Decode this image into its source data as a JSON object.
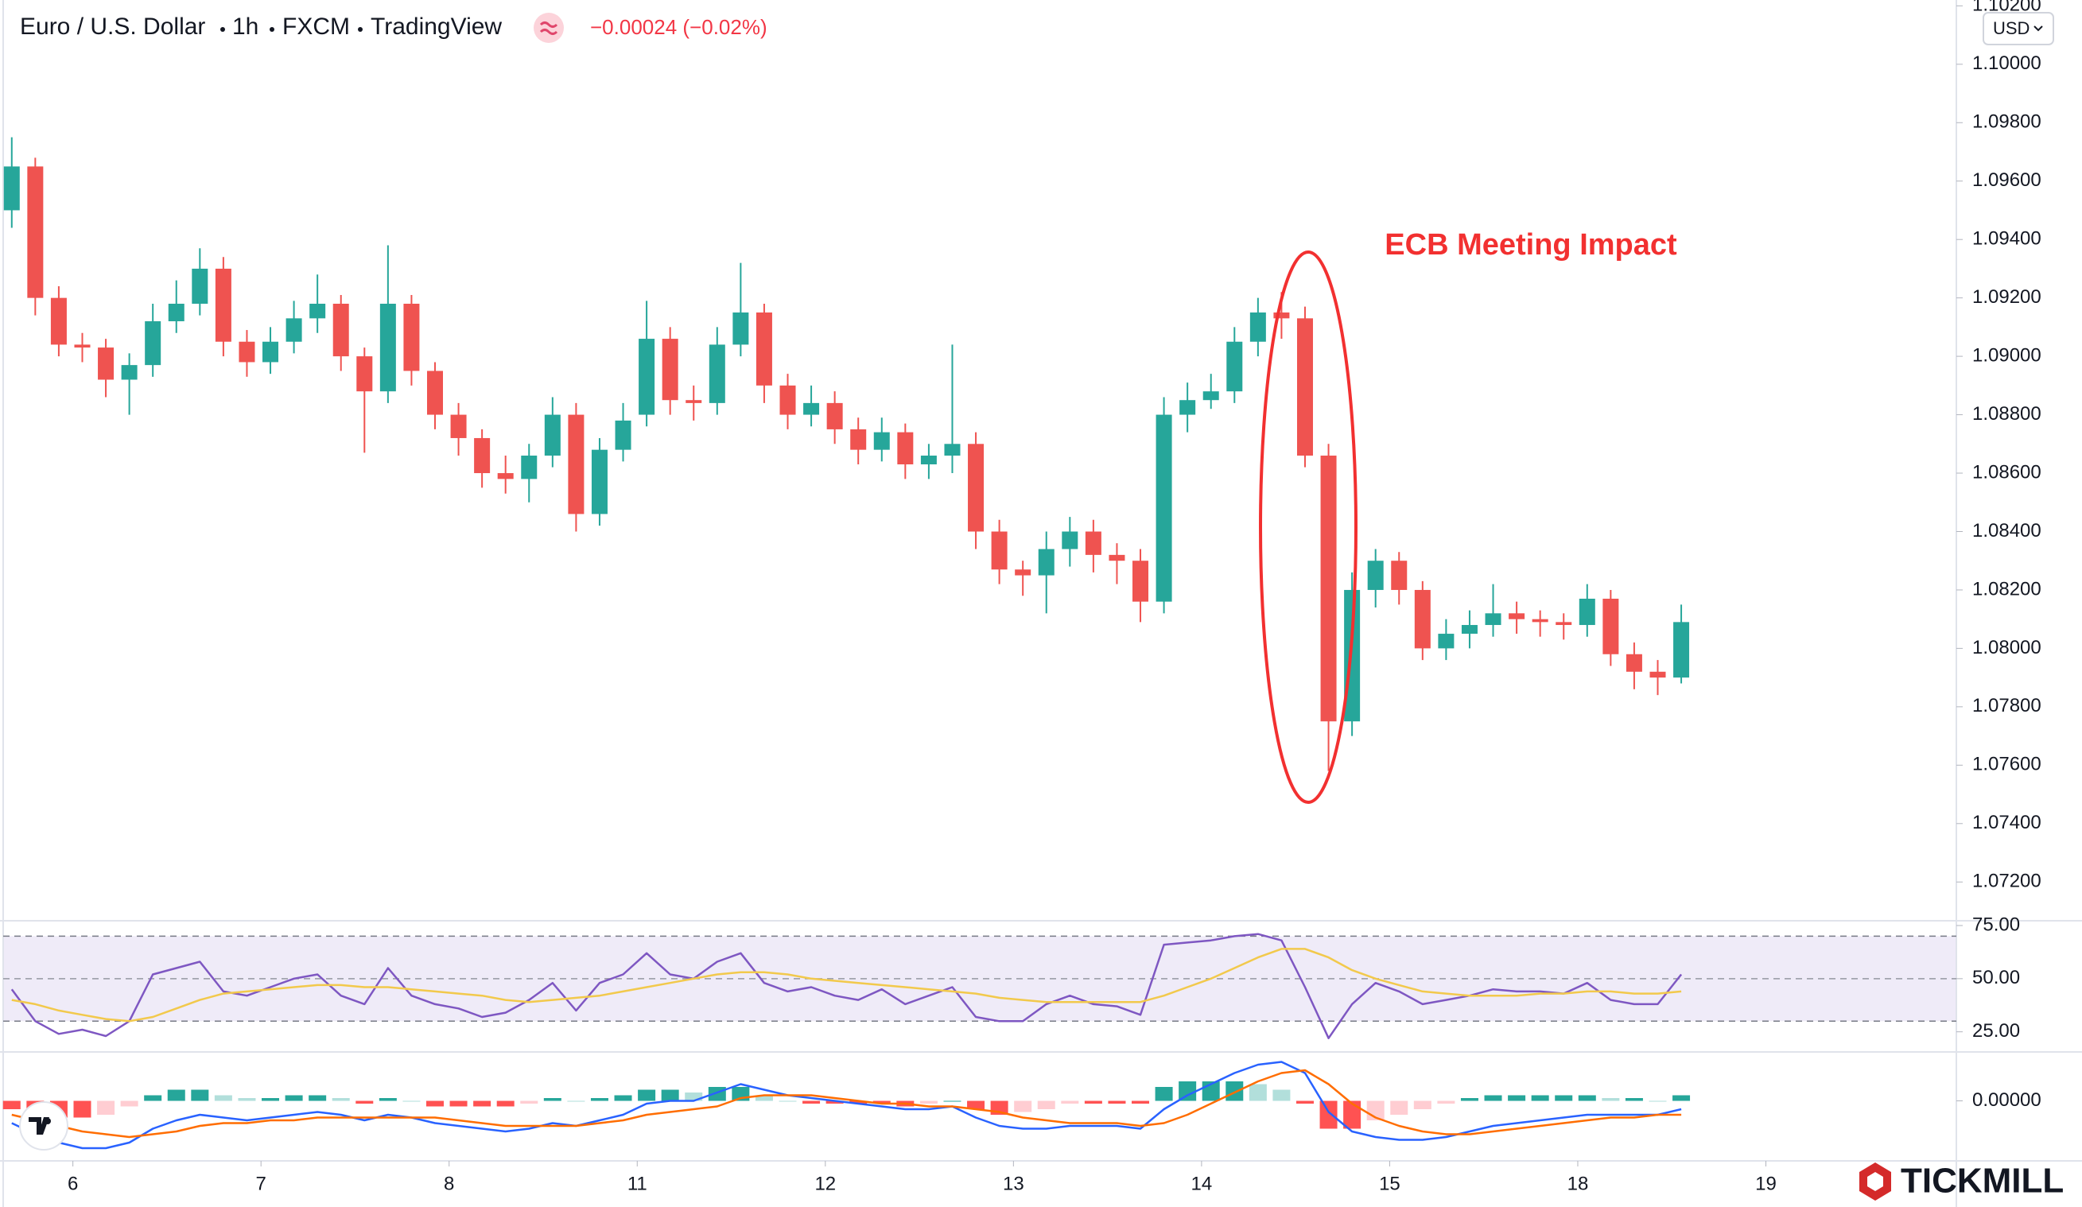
{
  "chart_data": [
    {
      "type": "candlestick",
      "title": "Euro / U.S. Dollar",
      "interval": "1h",
      "source": "FXCM",
      "platform": "TradingView",
      "change": "−0.00024 (−0.02%)",
      "currency": "USD",
      "annotation": "ECB Meeting Impact",
      "up_color": "#26a69a",
      "down_color": "#ef5350",
      "xlim": [
        0,
        83.2
      ],
      "xticks": [
        {
          "value": 3.1,
          "label": "6"
        },
        {
          "value": 11.1,
          "label": "7"
        },
        {
          "value": 19.1,
          "label": "8"
        },
        {
          "value": 27.1,
          "label": "11"
        },
        {
          "value": 35.1,
          "label": "12"
        },
        {
          "value": 43.1,
          "label": "13"
        },
        {
          "value": 51.1,
          "label": "14"
        },
        {
          "value": 59.1,
          "label": "15"
        },
        {
          "value": 67.1,
          "label": "18"
        },
        {
          "value": 75.1,
          "label": "19"
        }
      ],
      "ylim": [
        1.0707,
        1.1022
      ],
      "yticks": [
        {
          "value": 1.072,
          "label": "1.07200"
        },
        {
          "value": 1.074,
          "label": "1.07400"
        },
        {
          "value": 1.076,
          "label": "1.07600"
        },
        {
          "value": 1.078,
          "label": "1.07800"
        },
        {
          "value": 1.08,
          "label": "1.08000"
        },
        {
          "value": 1.082,
          "label": "1.08200"
        },
        {
          "value": 1.084,
          "label": "1.08400"
        },
        {
          "value": 1.086,
          "label": "1.08600"
        },
        {
          "value": 1.088,
          "label": "1.08800"
        },
        {
          "value": 1.09,
          "label": "1.09000"
        },
        {
          "value": 1.092,
          "label": "1.09200"
        },
        {
          "value": 1.094,
          "label": "1.09400"
        },
        {
          "value": 1.096,
          "label": "1.09600"
        },
        {
          "value": 1.098,
          "label": "1.09800"
        },
        {
          "value": 1.1,
          "label": "1.10000"
        },
        {
          "value": 1.102,
          "label": "1.10200"
        }
      ],
      "open": [
        1.095,
        1.0965,
        1.092,
        1.0904,
        1.0903,
        1.0892,
        1.0897,
        1.0912,
        1.0918,
        1.093,
        1.0905,
        1.0898,
        1.0905,
        1.0913,
        1.0918,
        1.09,
        1.0888,
        1.0918,
        1.0895,
        1.088,
        1.0872,
        1.086,
        1.0858,
        1.0866,
        1.088,
        1.0846,
        1.0868,
        1.088,
        1.0906,
        1.0885,
        1.0884,
        1.0904,
        1.0915,
        1.089,
        1.088,
        1.0884,
        1.0875,
        1.0868,
        1.0874,
        1.0863,
        1.0866,
        1.087,
        1.084,
        1.0827,
        1.0825,
        1.0834,
        1.084,
        1.0832,
        1.083,
        1.0816,
        1.088,
        1.0885,
        1.0888,
        1.0905,
        1.0915,
        1.0913,
        1.0866,
        1.0775,
        1.082,
        1.083,
        1.082,
        1.08,
        1.0805,
        1.0808,
        1.0812,
        1.081,
        1.0809,
        1.0808,
        1.0817,
        1.0798,
        1.0792,
        1.079
      ],
      "high": [
        1.0975,
        1.0968,
        1.0924,
        1.0908,
        1.0906,
        1.0901,
        1.0918,
        1.0926,
        1.0937,
        1.0934,
        1.0909,
        1.091,
        1.0919,
        1.0928,
        1.0921,
        1.0903,
        1.0938,
        1.0921,
        1.0898,
        1.0884,
        1.0875,
        1.0866,
        1.087,
        1.0886,
        1.0884,
        1.0872,
        1.0884,
        1.0919,
        1.091,
        1.089,
        1.091,
        1.0932,
        1.0918,
        1.0894,
        1.089,
        1.0888,
        1.0879,
        1.0879,
        1.0877,
        1.087,
        1.0904,
        1.0874,
        1.0844,
        1.083,
        1.084,
        1.0845,
        1.0844,
        1.0836,
        1.0834,
        1.0886,
        1.0891,
        1.0894,
        1.091,
        1.092,
        1.0922,
        1.0917,
        1.087,
        1.0826,
        1.0834,
        1.0833,
        1.0823,
        1.081,
        1.0813,
        1.0822,
        1.0816,
        1.0813,
        1.0812,
        1.0822,
        1.082,
        1.0802,
        1.0796,
        1.0815
      ],
      "low": [
        1.0944,
        1.0914,
        1.09,
        1.0898,
        1.0886,
        1.088,
        1.0893,
        1.0908,
        1.0914,
        1.09,
        1.0893,
        1.0894,
        1.0901,
        1.0908,
        1.0895,
        1.0867,
        1.0884,
        1.089,
        1.0875,
        1.0866,
        1.0855,
        1.0853,
        1.085,
        1.0862,
        1.084,
        1.0842,
        1.0864,
        1.0876,
        1.088,
        1.0878,
        1.088,
        1.09,
        1.0884,
        1.0875,
        1.0876,
        1.087,
        1.0863,
        1.0864,
        1.0858,
        1.0858,
        1.086,
        1.0834,
        1.0822,
        1.0818,
        1.0812,
        1.0828,
        1.0826,
        1.0822,
        1.0809,
        1.0812,
        1.0874,
        1.0882,
        1.0884,
        1.09,
        1.0906,
        1.0862,
        1.0758,
        1.077,
        1.0814,
        1.0815,
        1.0796,
        1.0796,
        1.08,
        1.0804,
        1.0805,
        1.0804,
        1.0803,
        1.0804,
        1.0794,
        1.0786,
        1.0784,
        1.0788
      ],
      "close": [
        1.0965,
        1.092,
        1.0904,
        1.0903,
        1.0892,
        1.0897,
        1.0912,
        1.0918,
        1.093,
        1.0905,
        1.0898,
        1.0905,
        1.0913,
        1.0918,
        1.09,
        1.0888,
        1.0918,
        1.0895,
        1.088,
        1.0872,
        1.086,
        1.0858,
        1.0866,
        1.088,
        1.0846,
        1.0868,
        1.0878,
        1.0906,
        1.0885,
        1.0884,
        1.0904,
        1.0915,
        1.089,
        1.088,
        1.0884,
        1.0875,
        1.0868,
        1.0874,
        1.0863,
        1.0866,
        1.087,
        1.084,
        1.0827,
        1.0825,
        1.0834,
        1.084,
        1.0832,
        1.083,
        1.0816,
        1.088,
        1.0885,
        1.0888,
        1.0905,
        1.0915,
        1.0913,
        1.0866,
        1.0775,
        1.082,
        1.083,
        1.082,
        1.08,
        1.0805,
        1.0808,
        1.0812,
        1.081,
        1.0809,
        1.0808,
        1.0817,
        1.0798,
        1.0792,
        1.079,
        1.0809
      ]
    },
    {
      "type": "line",
      "ylim": [
        15.9,
        76.5
      ],
      "band": [
        30,
        70
      ],
      "band_color": "#7e57c2",
      "yticks": [
        {
          "value": 25,
          "label": "25.00"
        },
        {
          "value": 50,
          "label": "50.00"
        },
        {
          "value": 75,
          "label": "75.00"
        }
      ],
      "series": [
        {
          "color": "#7e57c2",
          "values": [
            45,
            30,
            24,
            26,
            23,
            30,
            52,
            55,
            58,
            44,
            42,
            46,
            50,
            52,
            42,
            38,
            55,
            42,
            38,
            36,
            32,
            34,
            40,
            48,
            35,
            48,
            52,
            62,
            52,
            50,
            58,
            62,
            48,
            44,
            46,
            42,
            40,
            45,
            38,
            42,
            46,
            32,
            30,
            30,
            38,
            42,
            38,
            37,
            33,
            66,
            67,
            68,
            70,
            71,
            68,
            46,
            22,
            38,
            48,
            44,
            38,
            40,
            42,
            45,
            44,
            44,
            43,
            48,
            40,
            38,
            38,
            52
          ]
        },
        {
          "color": "#f2c94c",
          "values": [
            40,
            38,
            35,
            33,
            31,
            30,
            32,
            36,
            40,
            43,
            44,
            45,
            46,
            47,
            47,
            46,
            46,
            45,
            44,
            43,
            42,
            40,
            39,
            40,
            41,
            42,
            44,
            46,
            48,
            50,
            52,
            53,
            53,
            52,
            50,
            49,
            48,
            47,
            46,
            45,
            44,
            43,
            41,
            40,
            39,
            39,
            39,
            39,
            39,
            42,
            46,
            50,
            55,
            60,
            64,
            64,
            60,
            54,
            50,
            47,
            44,
            43,
            42,
            42,
            42,
            43,
            43,
            44,
            44,
            43,
            43,
            44
          ]
        }
      ]
    },
    {
      "type": "macd",
      "ylim": [
        -0.0021,
        0.0017
      ],
      "yticks": [
        {
          "value": 0,
          "label": "0.00000"
        }
      ],
      "histogram_colors": [
        "#26a69a",
        "#b2dfdb",
        "#ff5252",
        "#ffcdd2"
      ],
      "histogram": [
        -0.0003,
        -0.0005,
        -0.0006,
        -0.0006,
        -0.0005,
        -0.0002,
        0.0002,
        0.0004,
        0.0004,
        0.0002,
        0.0001,
        0.0001,
        0.0002,
        0.0002,
        0.0001,
        -0.0001,
        0.0001,
        0.0,
        -0.0002,
        -0.0002,
        -0.0002,
        -0.0002,
        -0.0001,
        0.0001,
        0.0,
        0.0001,
        0.0002,
        0.0004,
        0.0004,
        0.0003,
        0.0005,
        0.0005,
        0.0002,
        0.0,
        -0.0001,
        -0.0001,
        -0.0001,
        -0.0001,
        -0.0002,
        -0.0001,
        0.0,
        -0.0003,
        -0.0005,
        -0.0004,
        -0.0003,
        -0.0001,
        -0.0001,
        -0.0001,
        -0.0001,
        0.0005,
        0.0007,
        0.0007,
        0.0007,
        0.0006,
        0.0004,
        -0.0001,
        -0.001,
        -0.001,
        -0.0007,
        -0.0005,
        -0.0003,
        -0.0001,
        0.0001,
        0.0002,
        0.0002,
        0.0002,
        0.0002,
        0.0002,
        0.0001,
        0.0001,
        0.0,
        0.0002
      ],
      "series": [
        {
          "color": "#2962ff",
          "values": [
            -0.0008,
            -0.0012,
            -0.0015,
            -0.0017,
            -0.0017,
            -0.0015,
            -0.001,
            -0.0007,
            -0.0005,
            -0.0006,
            -0.0007,
            -0.0006,
            -0.0005,
            -0.0004,
            -0.0005,
            -0.0007,
            -0.0005,
            -0.0006,
            -0.0008,
            -0.0009,
            -0.001,
            -0.0011,
            -0.001,
            -0.0008,
            -0.0009,
            -0.0007,
            -0.0005,
            -0.0001,
            0.0,
            0.0,
            0.0003,
            0.0006,
            0.0004,
            0.0002,
            0.0001,
            0.0,
            -0.0001,
            -0.0002,
            -0.0003,
            -0.0003,
            -0.0002,
            -0.0006,
            -0.0009,
            -0.001,
            -0.001,
            -0.0009,
            -0.0009,
            -0.0009,
            -0.001,
            -0.0003,
            0.0002,
            0.0006,
            0.001,
            0.0013,
            0.0014,
            0.001,
            -0.0004,
            -0.0011,
            -0.0013,
            -0.0014,
            -0.0014,
            -0.0013,
            -0.0011,
            -0.0009,
            -0.0008,
            -0.0007,
            -0.0006,
            -0.0005,
            -0.0005,
            -0.0005,
            -0.0005,
            -0.0003
          ]
        },
        {
          "color": "#ff6d00",
          "values": [
            -0.0005,
            -0.0007,
            -0.0009,
            -0.0011,
            -0.0012,
            -0.0013,
            -0.0012,
            -0.0011,
            -0.0009,
            -0.0008,
            -0.0008,
            -0.0007,
            -0.0007,
            -0.0006,
            -0.0006,
            -0.0006,
            -0.0006,
            -0.0006,
            -0.0006,
            -0.0007,
            -0.0008,
            -0.0009,
            -0.0009,
            -0.0009,
            -0.0009,
            -0.0008,
            -0.0007,
            -0.0005,
            -0.0004,
            -0.0003,
            -0.0002,
            0.0001,
            0.0002,
            0.0002,
            0.0002,
            0.0001,
            0.0,
            -0.0001,
            -0.0001,
            -0.0002,
            -0.0002,
            -0.0003,
            -0.0004,
            -0.0006,
            -0.0007,
            -0.0008,
            -0.0008,
            -0.0008,
            -0.0009,
            -0.0008,
            -0.0005,
            -0.0001,
            0.0003,
            0.0007,
            0.001,
            0.0011,
            0.0006,
            -0.0001,
            -0.0006,
            -0.0009,
            -0.0011,
            -0.0012,
            -0.0012,
            -0.0011,
            -0.001,
            -0.0009,
            -0.0008,
            -0.0007,
            -0.0006,
            -0.0006,
            -0.0005,
            -0.0005
          ]
        }
      ]
    }
  ],
  "brand": "TICKMILL"
}
